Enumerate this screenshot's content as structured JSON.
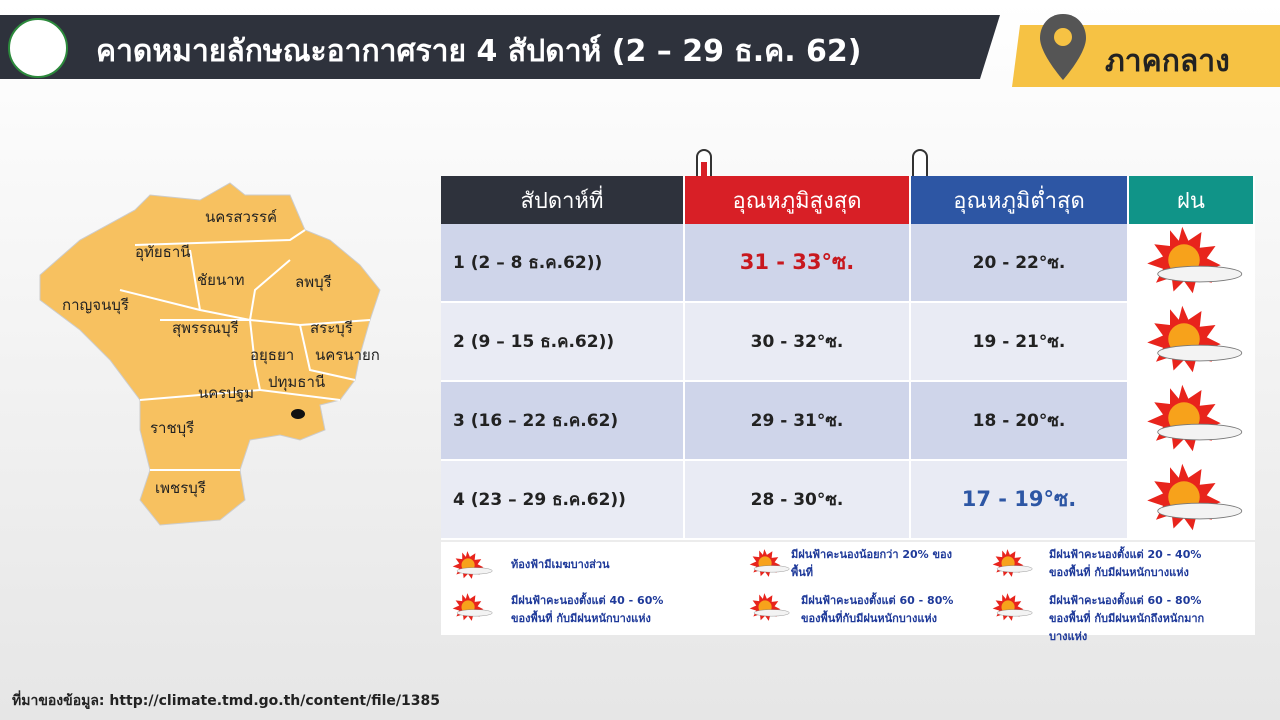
{
  "header": {
    "title": "คาดหมายลักษณะอากาศราย 4 สัปดาห์ (2 – 29 ธ.ค. 62)",
    "region": "ภาคกลาง"
  },
  "map": {
    "provinces": [
      "นครสวรรค์",
      "อุทัยธานี",
      "ชัยนาท",
      "ลพบุรี",
      "กาญจนบุรี",
      "สุพรรณบุรี",
      "สระบุรี",
      "อยุธยา",
      "นครนายก",
      "ปทุมธานี",
      "นครปฐม",
      "ราชบุรี",
      "เพชรบุรี"
    ]
  },
  "table": {
    "columns": [
      "สัปดาห์ที่",
      "อุณหภูมิสูงสุด",
      "อุณหภูมิต่ำสุด",
      "ฝน"
    ],
    "rows": [
      [
        "1 (2 – 8 ธ.ค.62))",
        "31 - 33°ซ.",
        "20 - 22°ซ."
      ],
      [
        "2 (9 – 15 ธ.ค.62))",
        "30 - 32°ซ.",
        "19 - 21°ซ."
      ],
      [
        "3 (16 – 22 ธ.ค.62)",
        "29 - 31°ซ.",
        "18 - 20°ซ."
      ],
      [
        "4 (23 – 29 ธ.ค.62))",
        "28 - 30°ซ.",
        "17 - 19°ซ."
      ]
    ]
  },
  "legend": {
    "items": [
      "ท้องฟ้ามีเมฆบางส่วน",
      "มีฝนฟ้าคะนองน้อยกว่า 20% ของพื้นที่",
      "มีฝนฟ้าคะนองตั้งแต่ 20 - 40% ของพื้นที่ กับมีฝนหนักบางแห่ง",
      "มีฝนฟ้าคะนองตั้งแต่ 40 - 60% ของพื้นที่ กับมีฝนหนักบางแห่ง",
      "มีฝนฟ้าคะนองตั้งแต่ 60 - 80% ของพื้นที่กับมีฝนหนักบางแห่ง",
      "มีฝนฟ้าคะนองตั้งแต่ 60 - 80% ของพื้นที่ กับมีฝนหนักถึงหนักมากบางแห่ง"
    ]
  },
  "footer": {
    "source": "ที่มาของข้อมูล: http://climate.tmd.go.th/content/file/1385"
  }
}
